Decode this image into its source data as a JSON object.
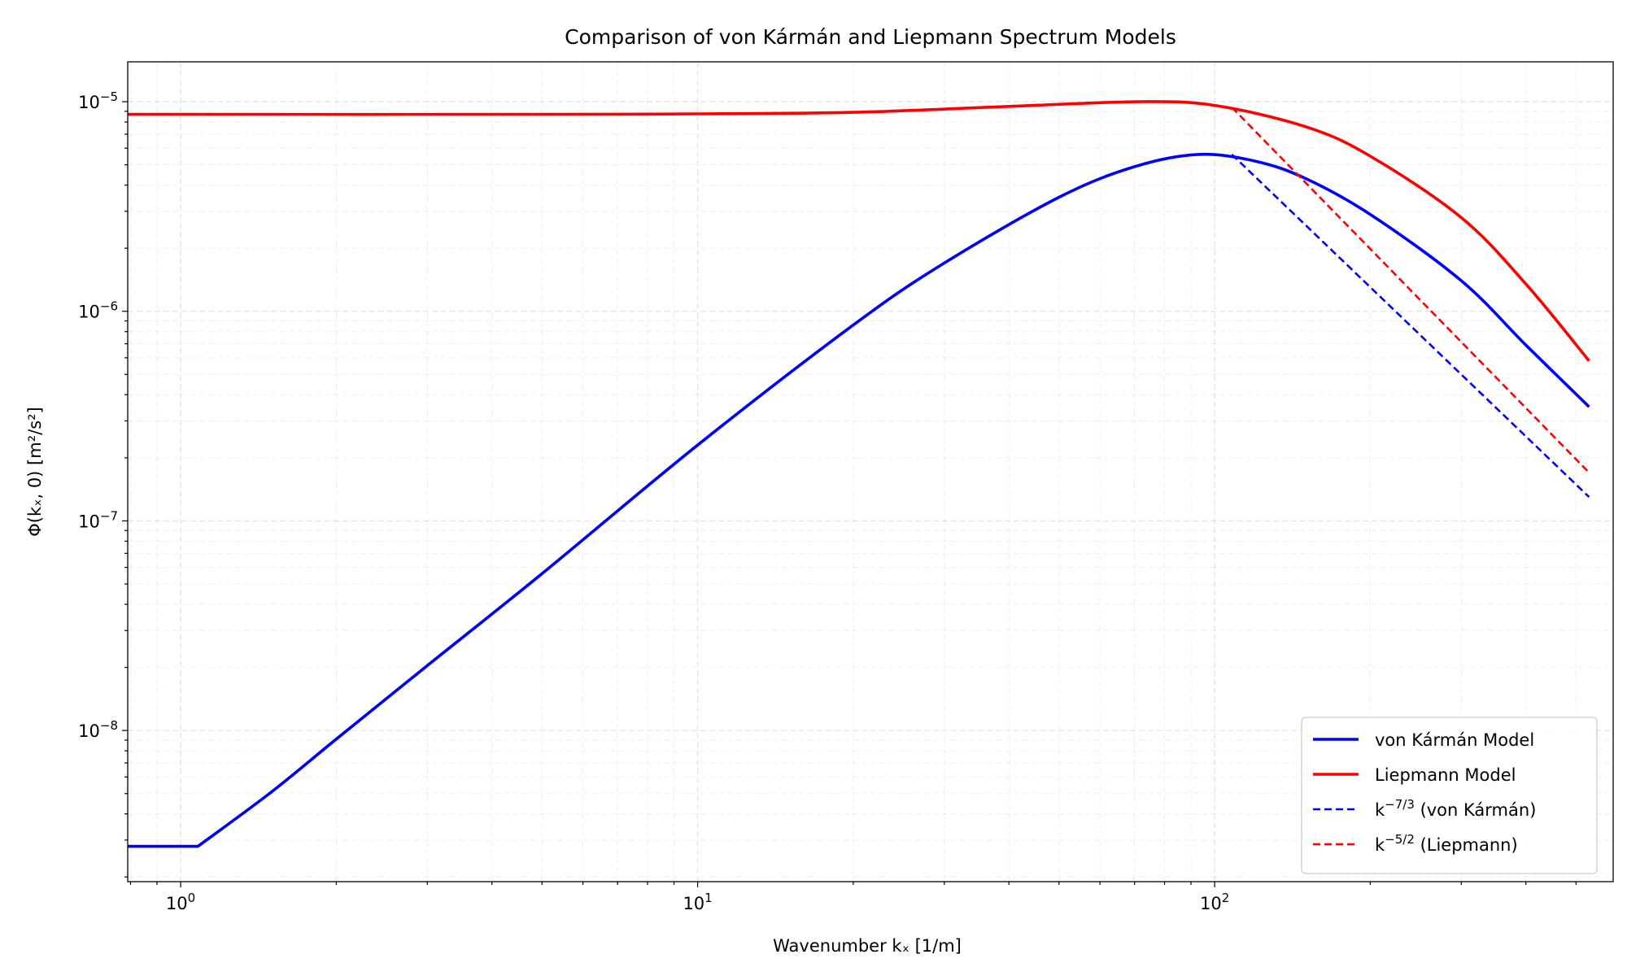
{
  "chart_data": {
    "type": "line",
    "title": "Comparison of von Kármán and Liepmann Spectrum Models",
    "xlabel": "Wavenumber kₓ [1/m]",
    "ylabel": "Φ(kₓ, 0) [m²/s²]",
    "x_scale": "log",
    "y_scale": "log",
    "xlim": [
      0.79,
      590
    ],
    "ylim": [
      1.9e-09,
      1.55e-05
    ],
    "grid": true,
    "legend_position": "lower-right",
    "x_ticks": [
      {
        "value": 1,
        "base": "10",
        "exp": "0"
      },
      {
        "value": 10,
        "base": "10",
        "exp": "1"
      },
      {
        "value": 100,
        "base": "10",
        "exp": "2"
      }
    ],
    "y_ticks": [
      {
        "value": 1e-08,
        "base": "10",
        "exp": "−8"
      },
      {
        "value": 1e-07,
        "base": "10",
        "exp": "−7"
      },
      {
        "value": 1e-06,
        "base": "10",
        "exp": "−6"
      },
      {
        "value": 1e-05,
        "base": "10",
        "exp": "−5"
      }
    ],
    "series": [
      {
        "name": "von Kármán Model",
        "color": "#0000ff",
        "style": "solid",
        "points": [
          [
            0.79,
            2.8e-09
          ],
          [
            1.08,
            2.8e-09
          ],
          [
            1.5,
            5.1e-09
          ],
          [
            2,
            9.1e-09
          ],
          [
            3,
            2.04e-08
          ],
          [
            5,
            5.6e-08
          ],
          [
            10,
            2.3e-07
          ],
          [
            20,
            8.6e-07
          ],
          [
            30,
            1.7e-06
          ],
          [
            50,
            3.5e-06
          ],
          [
            70,
            4.9e-06
          ],
          [
            93,
            5.6e-06
          ],
          [
            120,
            5.2e-06
          ],
          [
            150,
            4.3e-06
          ],
          [
            200,
            2.9e-06
          ],
          [
            300,
            1.4e-06
          ],
          [
            400,
            6.9e-07
          ],
          [
            530,
            3.5e-07
          ]
        ]
      },
      {
        "name": "Liepmann Model",
        "color": "#ff0000",
        "style": "solid",
        "points": [
          [
            0.79,
            8.7e-06
          ],
          [
            1,
            8.7e-06
          ],
          [
            5,
            8.7e-06
          ],
          [
            10,
            8.75e-06
          ],
          [
            20,
            8.9e-06
          ],
          [
            40,
            9.5e-06
          ],
          [
            72,
            1e-05
          ],
          [
            100,
            9.6e-06
          ],
          [
            150,
            7.6e-06
          ],
          [
            200,
            5.5e-06
          ],
          [
            300,
            2.8e-06
          ],
          [
            400,
            1.35e-06
          ],
          [
            530,
            5.8e-07
          ]
        ]
      },
      {
        "name": "k⁻⁷/³ (von Kármán)",
        "legend_label": "k",
        "legend_sup": "−7/3",
        "legend_suffix": " (von Kármán)",
        "color": "#0000ff",
        "style": "dashed",
        "points": [
          [
            108,
            5.6e-06
          ],
          [
            530,
            1.3e-07
          ]
        ]
      },
      {
        "name": "k⁻⁵/² (Liepmann)",
        "legend_label": "k",
        "legend_sup": "−5/2",
        "legend_suffix": " (Liepmann)",
        "color": "#ff0000",
        "style": "dashed",
        "points": [
          [
            108,
            9.4e-06
          ],
          [
            530,
            1.7e-07
          ]
        ]
      }
    ]
  }
}
